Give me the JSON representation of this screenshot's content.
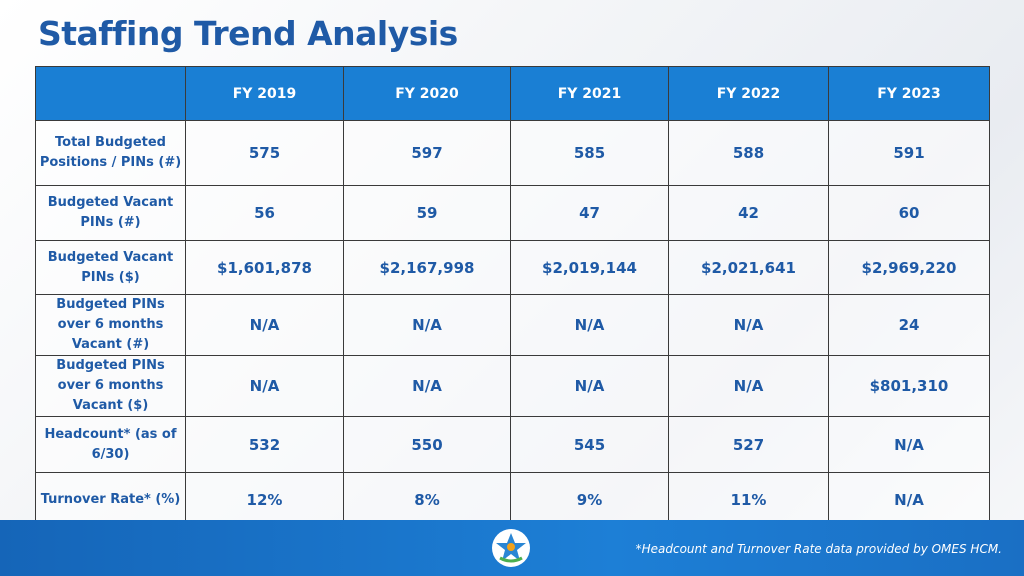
{
  "header": {
    "title": "Staffing Trend Analysis"
  },
  "table": {
    "columns": [
      "FY 2019",
      "FY 2020",
      "FY 2021",
      "FY 2022",
      "FY 2023"
    ],
    "rows": [
      {
        "label": "Total Budgeted Positions / PINs (#)",
        "cells": [
          "575",
          "597",
          "585",
          "588",
          "591"
        ]
      },
      {
        "label": "Budgeted Vacant PINs (#)",
        "cells": [
          "56",
          "59",
          "47",
          "42",
          "60"
        ]
      },
      {
        "label": "Budgeted Vacant PINs ($)",
        "cells": [
          "$1,601,878",
          "$2,167,998",
          "$2,019,144",
          "$2,021,641",
          "$2,969,220"
        ]
      },
      {
        "label": "Budgeted PINs over 6 months Vacant (#)",
        "cells": [
          "N/A",
          "N/A",
          "N/A",
          "N/A",
          "24"
        ]
      },
      {
        "label": "Budgeted PINs over 6 months Vacant ($)",
        "cells": [
          "N/A",
          "N/A",
          "N/A",
          "N/A",
          "$801,310"
        ]
      },
      {
        "label": "Headcount* (as of 6/30)",
        "cells": [
          "532",
          "550",
          "545",
          "527",
          "N/A"
        ]
      },
      {
        "label": "Turnover Rate* (%)",
        "cells": [
          "12%",
          "8%",
          "9%",
          "11%",
          "N/A"
        ]
      }
    ]
  },
  "footnote": "*Headcount and Turnover Rate data provided by OMES HCM."
}
